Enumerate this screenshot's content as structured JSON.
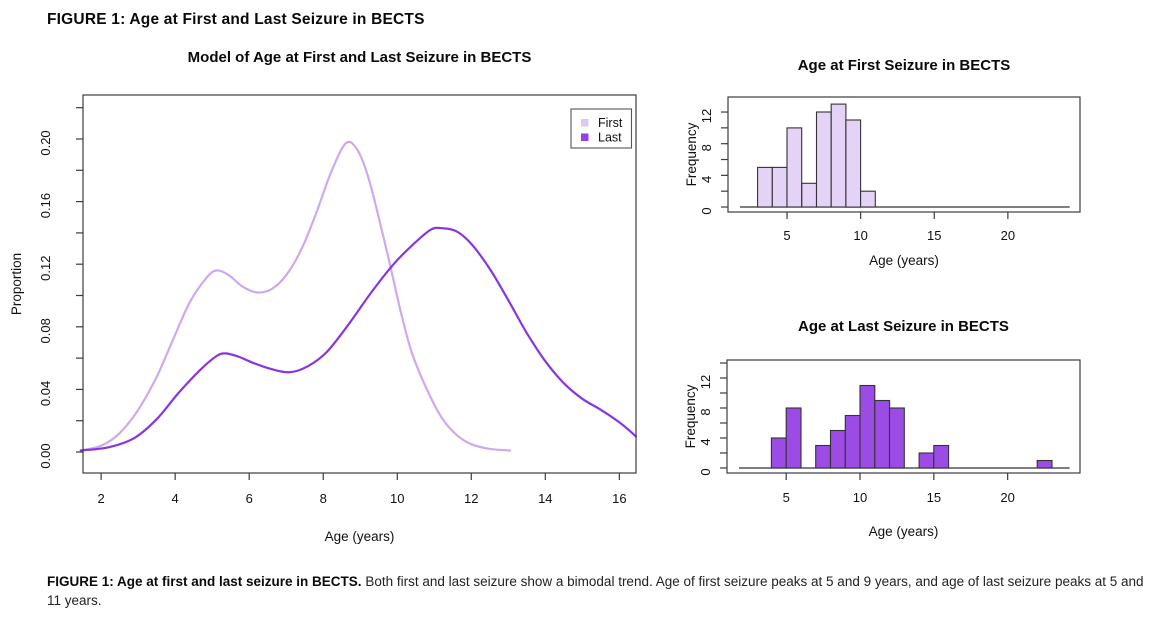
{
  "page": {
    "figure_title": "FIGURE 1: Age at First and Last Seizure in BECTS",
    "caption": {
      "bold": "FIGURE 1: Age at first and last seizure in BECTS.",
      "text": " Both first and last seizure show a bimodal trend. Age of first seizure peaks at 5 and 9 years, and age of last seizure peaks at 5 and 11 years."
    }
  },
  "colors": {
    "first_line": "#cda9f0",
    "first_fill": "#e4d3f7",
    "first_legend": "#dcc8f7",
    "last_line": "#8836e0",
    "last_fill": "#9c4ce4",
    "last_legend": "#9440e8",
    "axis": "#3c3c3c",
    "bar_edge": "#333333",
    "text": "#111111"
  },
  "chart_data": [
    {
      "id": "density",
      "type": "line",
      "title": "Model of Age at First and Last Seizure in BECTS",
      "xlabel": "Age (years)",
      "ylabel": "Proportion",
      "xlim": [
        1.51,
        16.45
      ],
      "ylim": [
        -0.0134,
        0.2281
      ],
      "xticks": [
        2,
        4,
        6,
        8,
        10,
        12,
        14,
        16
      ],
      "yticks": {
        "from": 0,
        "to": 0.22,
        "step": 0.02,
        "label_every": 2,
        "decimals": 2
      },
      "grid": false,
      "legend": {
        "position": "top-right",
        "entries": [
          {
            "label": "First",
            "color": "#dcc8f7"
          },
          {
            "label": "Last",
            "color": "#9440e8"
          }
        ]
      },
      "series": [
        {
          "name": "First",
          "color": "#cda9f0",
          "points": [
            [
              1.45,
              0.001
            ],
            [
              2.0,
              0.004
            ],
            [
              2.5,
              0.012
            ],
            [
              3.0,
              0.027
            ],
            [
              3.5,
              0.048
            ],
            [
              4.0,
              0.075
            ],
            [
              4.4,
              0.096
            ],
            [
              4.8,
              0.11
            ],
            [
              5.1,
              0.116
            ],
            [
              5.45,
              0.113
            ],
            [
              5.8,
              0.106
            ],
            [
              6.2,
              0.102
            ],
            [
              6.6,
              0.104
            ],
            [
              7.0,
              0.113
            ],
            [
              7.4,
              0.129
            ],
            [
              7.8,
              0.152
            ],
            [
              8.2,
              0.178
            ],
            [
              8.6,
              0.197
            ],
            [
              8.9,
              0.194
            ],
            [
              9.2,
              0.177
            ],
            [
              9.5,
              0.15
            ],
            [
              9.8,
              0.12
            ],
            [
              10.1,
              0.089
            ],
            [
              10.4,
              0.063
            ],
            [
              10.8,
              0.04
            ],
            [
              11.2,
              0.022
            ],
            [
              11.6,
              0.011
            ],
            [
              12.0,
              0.005
            ],
            [
              12.5,
              0.002
            ],
            [
              13.05,
              0.001
            ]
          ]
        },
        {
          "name": "Last",
          "color": "#8836e0",
          "points": [
            [
              1.45,
              0.001
            ],
            [
              2.2,
              0.003
            ],
            [
              2.9,
              0.009
            ],
            [
              3.5,
              0.021
            ],
            [
              4.1,
              0.038
            ],
            [
              4.7,
              0.053
            ],
            [
              5.1,
              0.061
            ],
            [
              5.35,
              0.063
            ],
            [
              5.7,
              0.061
            ],
            [
              6.1,
              0.057
            ],
            [
              6.6,
              0.053
            ],
            [
              7.1,
              0.051
            ],
            [
              7.6,
              0.055
            ],
            [
              8.1,
              0.064
            ],
            [
              8.7,
              0.082
            ],
            [
              9.3,
              0.102
            ],
            [
              9.9,
              0.12
            ],
            [
              10.4,
              0.132
            ],
            [
              10.9,
              0.142
            ],
            [
              11.2,
              0.143
            ],
            [
              11.6,
              0.141
            ],
            [
              12.0,
              0.133
            ],
            [
              12.5,
              0.117
            ],
            [
              13.0,
              0.097
            ],
            [
              13.5,
              0.076
            ],
            [
              14.0,
              0.058
            ],
            [
              14.5,
              0.044
            ],
            [
              15.0,
              0.034
            ],
            [
              15.5,
              0.027
            ],
            [
              16.0,
              0.019
            ],
            [
              16.45,
              0.01
            ]
          ]
        }
      ]
    },
    {
      "id": "hist_first",
      "type": "bar",
      "title": "Age at First Seizure in BECTS",
      "xlabel": "Age (years)",
      "ylabel": "Frequency",
      "xlim": [
        0.99,
        24.9
      ],
      "ylim": [
        -0.63,
        13.9
      ],
      "xticks": [
        5,
        10,
        15,
        20
      ],
      "yticks": {
        "from": 0,
        "to": 12,
        "step": 2,
        "label_every": 2,
        "decimals": 0
      },
      "grid": false,
      "bar_color": "#e4d3f7",
      "bar_edge": "#333333",
      "bin_start": 3,
      "bin_width": 1,
      "values": [
        5,
        5,
        10,
        3,
        12,
        13,
        11,
        2
      ],
      "baseline": {
        "x1": 1.8,
        "x2": 24.2
      }
    },
    {
      "id": "hist_last",
      "type": "bar",
      "title": "Age at Last Seizure in BECTS",
      "xlabel": "Age (years)",
      "ylabel": "Frequency",
      "xlim": [
        0.99,
        24.9
      ],
      "ylim": [
        -0.67,
        14.4
      ],
      "xticks": [
        5,
        10,
        15,
        20
      ],
      "yticks": {
        "from": 0,
        "to": 14,
        "step": 2,
        "label_every": 2,
        "decimals": 0
      },
      "grid": false,
      "bar_color": "#9c4ce4",
      "bar_edge": "#333333",
      "bin_start": 4,
      "bin_width": 1,
      "values": [
        4,
        8,
        0,
        3,
        5,
        7,
        11,
        9,
        8,
        0,
        2,
        3,
        0,
        0,
        0,
        0,
        0,
        0,
        1
      ],
      "baseline": {
        "x1": 1.8,
        "x2": 24.2
      }
    }
  ]
}
